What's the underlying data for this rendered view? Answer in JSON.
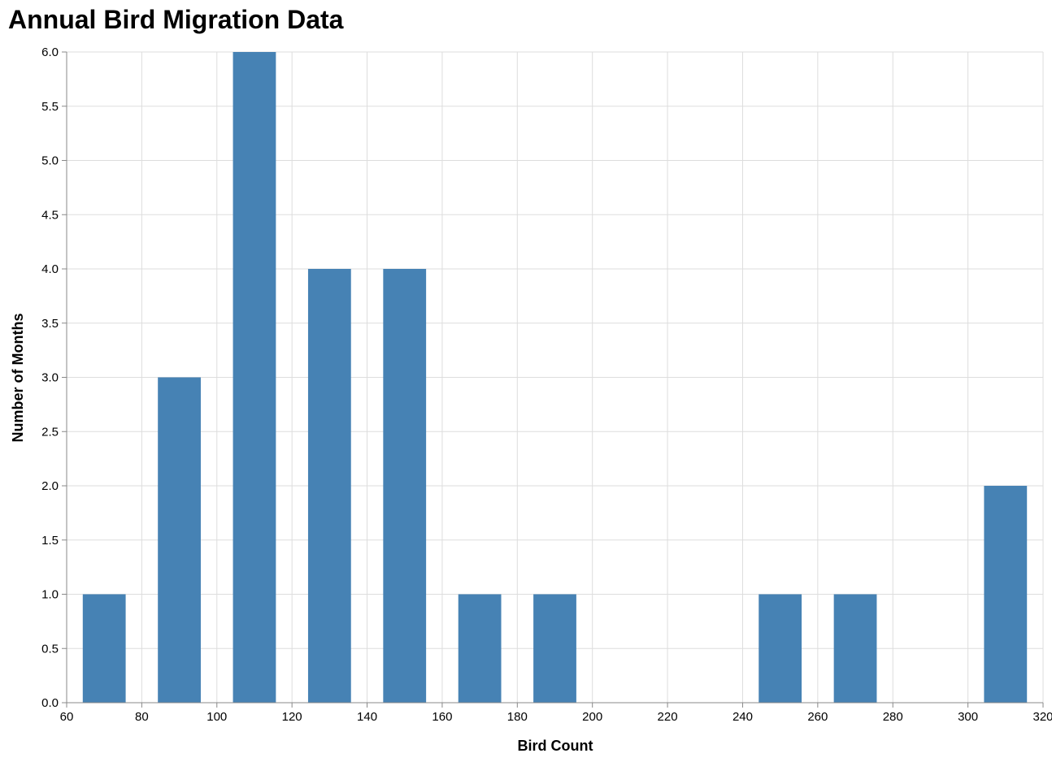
{
  "chart_data": {
    "type": "bar",
    "title": "Annual Bird Migration Data",
    "xlabel": "Bird Count",
    "ylabel": "Number of Months",
    "xlim": [
      60,
      320
    ],
    "ylim": [
      0,
      6
    ],
    "x_ticks": [
      60,
      80,
      100,
      120,
      140,
      160,
      180,
      200,
      220,
      240,
      260,
      280,
      300,
      320
    ],
    "y_ticks": [
      0,
      0.5,
      1,
      1.5,
      2,
      2.5,
      3,
      3.5,
      4,
      4.5,
      5,
      5.5,
      6
    ],
    "bin_width": 20,
    "bins": [
      {
        "bin_start": 60,
        "bin_end": 80,
        "count": 1
      },
      {
        "bin_start": 80,
        "bin_end": 100,
        "count": 3
      },
      {
        "bin_start": 100,
        "bin_end": 120,
        "count": 6
      },
      {
        "bin_start": 120,
        "bin_end": 140,
        "count": 4
      },
      {
        "bin_start": 140,
        "bin_end": 160,
        "count": 4
      },
      {
        "bin_start": 160,
        "bin_end": 180,
        "count": 1
      },
      {
        "bin_start": 180,
        "bin_end": 200,
        "count": 1
      },
      {
        "bin_start": 240,
        "bin_end": 260,
        "count": 1
      },
      {
        "bin_start": 260,
        "bin_end": 280,
        "count": 1
      },
      {
        "bin_start": 300,
        "bin_end": 320,
        "count": 2
      }
    ],
    "grid": true,
    "bar_color": "#4682b4"
  }
}
